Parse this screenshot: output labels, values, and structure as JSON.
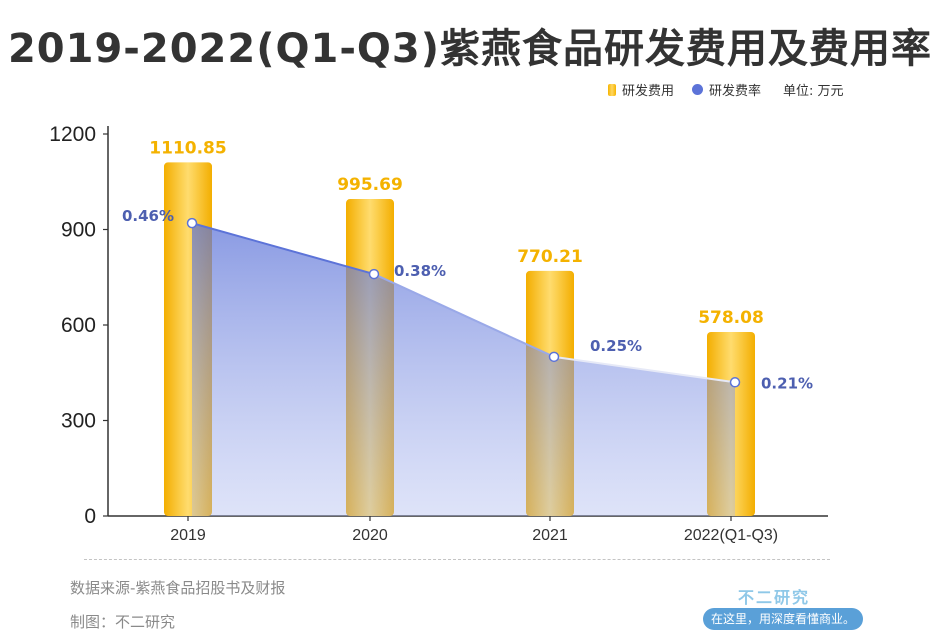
{
  "title": "2019-2022(Q1-Q3)紫燕食品研发费用及费用率",
  "legend": {
    "bar_label": "研发费用",
    "line_label": "研发费率",
    "unit": "单位: 万元"
  },
  "footer": {
    "source": "数据来源-紫燕食品招股书及财报",
    "made_by": "制图：不二研究"
  },
  "brand": {
    "name": "不二研究",
    "slogan": "在这里，用深度看懂商业。"
  },
  "colors": {
    "bar": "#f6b400",
    "bar_label": "#f4b200",
    "line": "#5c73d8",
    "rate_label": "#4d5fb0",
    "axis": "#333333"
  },
  "chart_data": {
    "type": "bar",
    "categories": [
      "2019",
      "2020",
      "2021",
      "2022(Q1-Q3)"
    ],
    "series": [
      {
        "name": "研发费用",
        "type": "bar",
        "values": [
          1110.85,
          995.69,
          770.21,
          578.08
        ],
        "labels": [
          "1110.85",
          "995.69",
          "770.21",
          "578.08"
        ]
      },
      {
        "name": "研发费率",
        "type": "area",
        "values": [
          0.46,
          0.38,
          0.25,
          0.21
        ],
        "labels": [
          "0.46%",
          "0.38%",
          "0.25%",
          "0.21%"
        ]
      }
    ],
    "y_ticks": [
      "0",
      "300",
      "600",
      "900",
      "1200"
    ],
    "ylim": [
      0,
      1200
    ],
    "legend_position": "top-right",
    "grid": false
  }
}
